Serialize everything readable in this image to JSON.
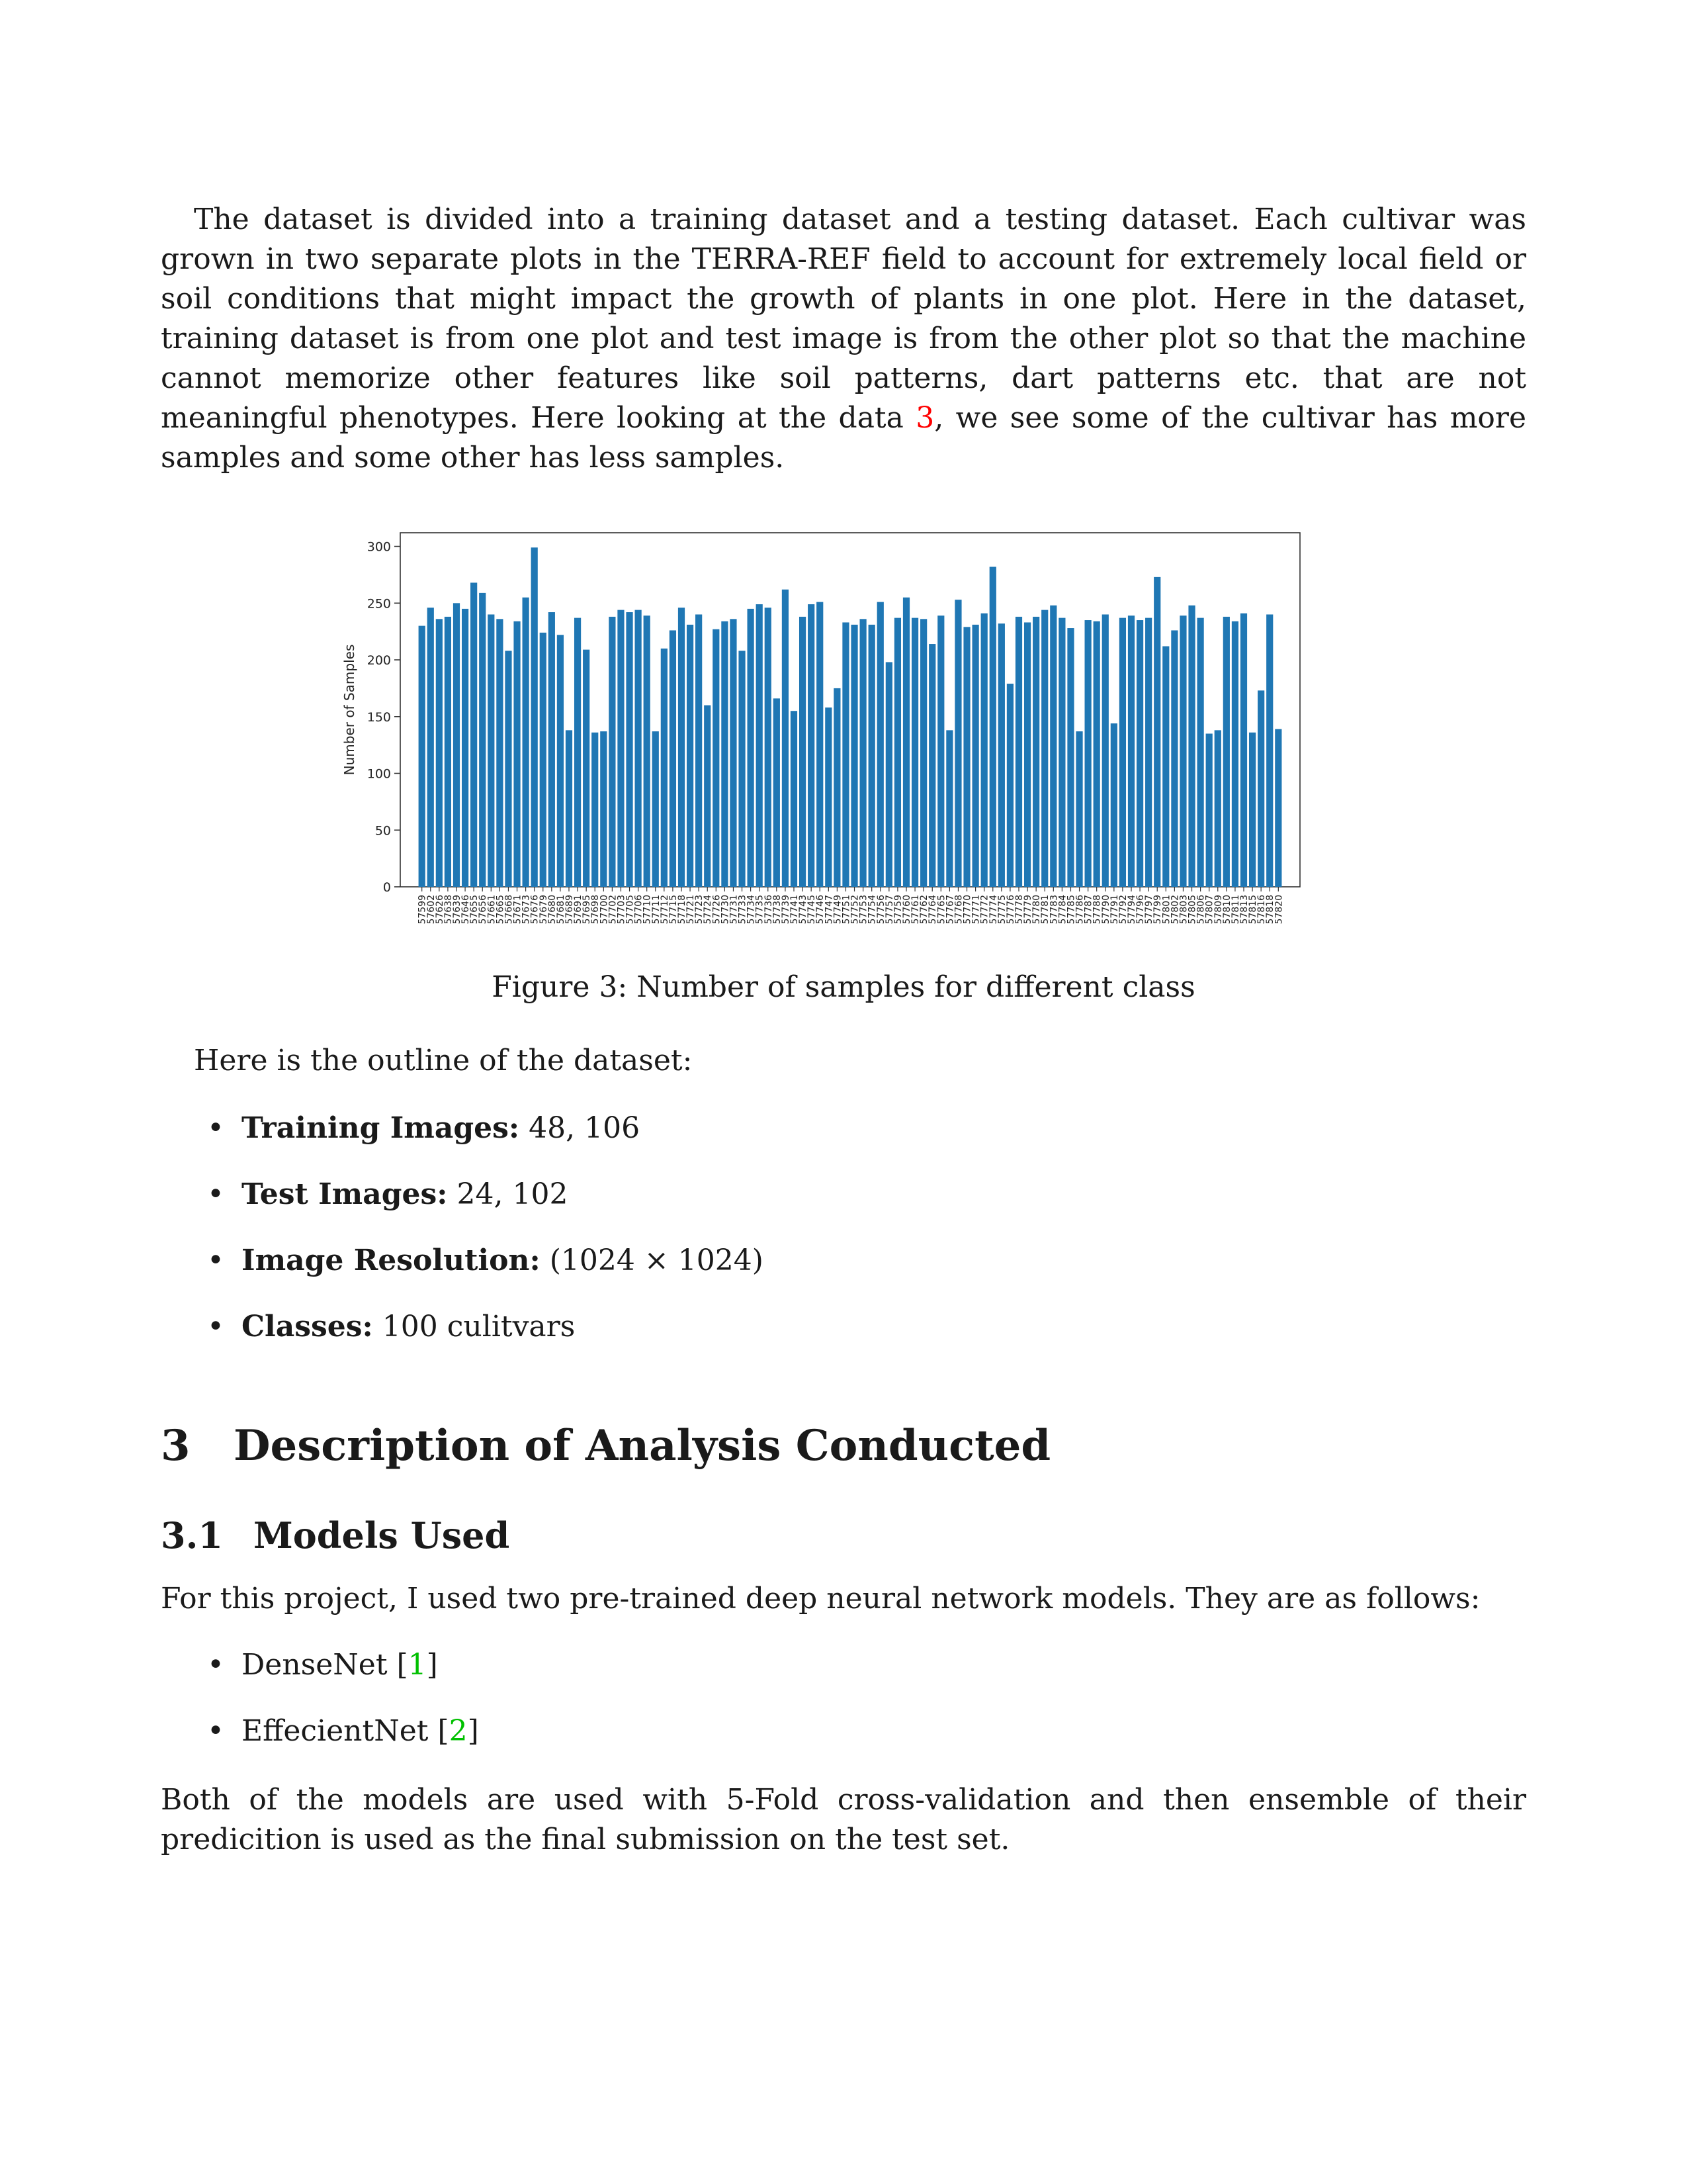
{
  "intro_paragraph": {
    "part1": "The dataset is divided into a training dataset and a testing dataset. Each cultivar was grown in two separate plots in the TERRA-REF field to account for extremely local field or soil conditions that might impact the growth of plants in one plot. Here in the dataset, training dataset is from one plot and test image is from the other plot so that the machine cannot memorize other features like soil patterns, dart patterns etc. that are not meaningful phenotypes. Here looking at the data ",
    "ref": "3",
    "part2": ", we see some of the cultivar has more samples and some other has less samples."
  },
  "figure": {
    "caption": "Figure 3: Number of samples for different class"
  },
  "chart_data": {
    "type": "bar",
    "ylabel": "Number of Samples",
    "xlabel": "",
    "ylim": [
      0,
      312
    ],
    "yticks": [
      0,
      50,
      100,
      150,
      200,
      250,
      300
    ],
    "grid": false,
    "bar_color": "#1f77b4",
    "categories": [
      "57599",
      "57602",
      "57626",
      "57638",
      "57639",
      "57646",
      "57655",
      "57656",
      "57661",
      "57665",
      "57668",
      "57671",
      "57673",
      "57676",
      "57679",
      "57680",
      "57681",
      "57689",
      "57691",
      "57695",
      "57698",
      "57700",
      "57702",
      "57703",
      "57705",
      "57706",
      "57710",
      "57711",
      "57712",
      "57715",
      "57718",
      "57721",
      "57723",
      "57724",
      "57726",
      "57730",
      "57731",
      "57733",
      "57734",
      "57735",
      "57736",
      "57738",
      "57739",
      "57741",
      "57743",
      "57745",
      "57746",
      "57747",
      "57749",
      "57751",
      "57752",
      "57753",
      "57754",
      "57756",
      "57757",
      "57759",
      "57760",
      "57761",
      "57762",
      "57764",
      "57765",
      "57767",
      "57768",
      "57770",
      "57771",
      "57772",
      "57774",
      "57775",
      "57776",
      "57778",
      "57779",
      "57780",
      "57781",
      "57783",
      "57784",
      "57785",
      "57786",
      "57787",
      "57788",
      "57790",
      "57791",
      "57792",
      "57794",
      "57796",
      "57797",
      "57799",
      "57801",
      "57802",
      "57803",
      "57805",
      "57806",
      "57807",
      "57809",
      "57810",
      "57811",
      "57813",
      "57815",
      "57816",
      "57818",
      "57820"
    ],
    "values": [
      230,
      246,
      236,
      238,
      250,
      245,
      268,
      259,
      240,
      236,
      208,
      234,
      255,
      299,
      224,
      242,
      222,
      138,
      237,
      209,
      136,
      137,
      238,
      244,
      242,
      244,
      239,
      137,
      210,
      226,
      246,
      231,
      240,
      160,
      227,
      234,
      236,
      208,
      245,
      249,
      246,
      166,
      262,
      155,
      238,
      249,
      251,
      158,
      175,
      233,
      231,
      236,
      231,
      251,
      198,
      237,
      255,
      237,
      236,
      214,
      239,
      138,
      253,
      229,
      231,
      241,
      282,
      232,
      179,
      238,
      233,
      238,
      244,
      248,
      237,
      228,
      137,
      235,
      234,
      240,
      144,
      237,
      239,
      235,
      237,
      273,
      212,
      226,
      239,
      248,
      237,
      135,
      138,
      238,
      234,
      241,
      136,
      173,
      240,
      139
    ]
  },
  "outline": {
    "intro": "Here is the outline of the dataset:",
    "items": [
      {
        "label": "Training Images:",
        "value": "48, 106"
      },
      {
        "label": "Test Images:",
        "value": "24, 102"
      },
      {
        "label": "Image Resolution:",
        "value": "(1024 × 1024)"
      },
      {
        "label": "Classes:",
        "value": "100 culitvars"
      }
    ]
  },
  "section": {
    "number": "3",
    "title": "Description of Analysis Conducted"
  },
  "subsection": {
    "number": "3.1",
    "title": "Models Used"
  },
  "models": {
    "intro": "For this project, I used two pre-trained deep neural network models. They are as follows:",
    "items": [
      {
        "name": "DenseNet",
        "ref": "1"
      },
      {
        "name": "EffecientNet",
        "ref": "2"
      }
    ],
    "closing": "Both of the models are used with 5-Fold cross-validation and then ensemble of their predicition is used as the final submission on the test set."
  },
  "colors": {
    "ref_citation_figure": "#ff0000",
    "ref_citation_bib": "#00c000"
  }
}
